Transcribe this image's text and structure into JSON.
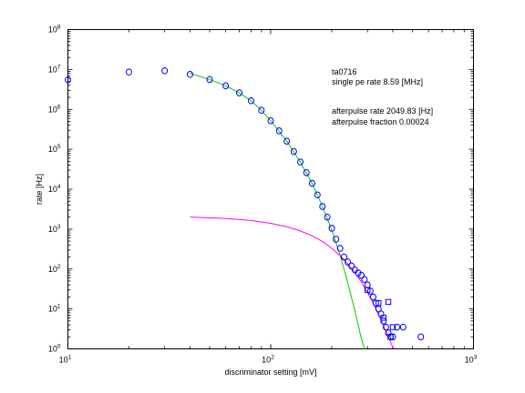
{
  "chart_data": {
    "type": "scatter",
    "xlabel": "discriminator setting [mV]",
    "ylabel": "rate [Hz]",
    "xscale": "log",
    "yscale": "log",
    "xlim": [
      10,
      1000
    ],
    "ylim": [
      1,
      100000000
    ],
    "x_ticks": [
      {
        "value": 10,
        "base": "10",
        "exp": "1"
      },
      {
        "value": 100,
        "base": "10",
        "exp": "2"
      },
      {
        "value": 1000,
        "base": "10",
        "exp": "3"
      }
    ],
    "y_ticks": [
      {
        "value": 1,
        "base": "10",
        "exp": "0"
      },
      {
        "value": 10,
        "base": "10",
        "exp": "1"
      },
      {
        "value": 100,
        "base": "10",
        "exp": "2"
      },
      {
        "value": 1000,
        "base": "10",
        "exp": "3"
      },
      {
        "value": 10000,
        "base": "10",
        "exp": "4"
      },
      {
        "value": 100000,
        "base": "10",
        "exp": "5"
      },
      {
        "value": 1000000,
        "base": "10",
        "exp": "6"
      },
      {
        "value": 10000000,
        "base": "10",
        "exp": "7"
      },
      {
        "value": 100000000,
        "base": "10",
        "exp": "8"
      }
    ],
    "grid": false,
    "legend": "none",
    "annotations": [
      "ta0716",
      "single pe rate 8.59 [MHz]",
      "afterpulse rate 2049.83 [Hz]",
      "afterpulse fraction 0.00024"
    ],
    "colors": {
      "markers": "#0000ff",
      "single_pe_fit": "#00cc00",
      "afterpulse_fit": "#ff00ff",
      "axes": "#000000"
    },
    "series": [
      {
        "marker": "circle",
        "points": [
          [
            10,
            5500000
          ],
          [
            20,
            8600000
          ],
          [
            30,
            9300000
          ],
          [
            40,
            7500000
          ],
          [
            50,
            5600000
          ],
          [
            60,
            3900000
          ],
          [
            70,
            2600000
          ],
          [
            80,
            1650000
          ],
          [
            90,
            950000
          ],
          [
            100,
            520000
          ],
          [
            110,
            290000
          ],
          [
            120,
            160000
          ],
          [
            130,
            88000
          ],
          [
            140,
            48000
          ],
          [
            150,
            26000
          ],
          [
            160,
            14000
          ],
          [
            170,
            7200
          ],
          [
            180,
            3700
          ],
          [
            190,
            2000
          ],
          [
            200,
            1050
          ],
          [
            210,
            560
          ],
          [
            220,
            330
          ],
          [
            230,
            200
          ],
          [
            240,
            150
          ],
          [
            250,
            120
          ],
          [
            260,
            95
          ],
          [
            270,
            80
          ],
          [
            280,
            70
          ],
          [
            290,
            55
          ],
          [
            300,
            40
          ],
          [
            310,
            28
          ],
          [
            320,
            20
          ],
          [
            330,
            14
          ],
          [
            340,
            10
          ],
          [
            350,
            7.5
          ],
          [
            360,
            5
          ],
          [
            370,
            3.5
          ],
          [
            380,
            2.5
          ],
          [
            390,
            2
          ],
          [
            400,
            2
          ],
          [
            420,
            3.5
          ],
          [
            450,
            3.5
          ],
          [
            550,
            2
          ]
        ]
      },
      {
        "marker": "square",
        "points": [
          [
            300,
            30
          ],
          [
            340,
            14
          ],
          [
            360,
            6
          ],
          [
            380,
            15
          ],
          [
            390,
            2
          ],
          [
            400,
            3.5
          ]
        ]
      }
    ],
    "fit_curves": [
      {
        "color": "#00cc00",
        "points": [
          [
            40,
            8000000
          ],
          [
            50,
            5600000
          ],
          [
            60,
            3900000
          ],
          [
            70,
            2600000
          ],
          [
            80,
            1650000
          ],
          [
            90,
            950000
          ],
          [
            100,
            520000
          ],
          [
            120,
            160000
          ],
          [
            140,
            48000
          ],
          [
            160,
            14000
          ],
          [
            180,
            3700
          ],
          [
            200,
            950
          ],
          [
            220,
            220
          ],
          [
            240,
            45
          ],
          [
            260,
            9
          ],
          [
            280,
            1.8
          ],
          [
            290,
            1
          ]
        ]
      },
      {
        "color": "#ff00ff",
        "points": [
          [
            40,
            2000
          ],
          [
            60,
            1850
          ],
          [
            80,
            1650
          ],
          [
            100,
            1400
          ],
          [
            120,
            1150
          ],
          [
            140,
            900
          ],
          [
            160,
            680
          ],
          [
            180,
            490
          ],
          [
            200,
            330
          ],
          [
            220,
            215
          ],
          [
            240,
            135
          ],
          [
            260,
            82
          ],
          [
            280,
            47
          ],
          [
            300,
            26
          ],
          [
            320,
            14
          ],
          [
            340,
            7.3
          ],
          [
            360,
            3.8
          ],
          [
            380,
            2
          ],
          [
            400,
            1.1
          ],
          [
            410,
            1
          ]
        ]
      }
    ]
  }
}
